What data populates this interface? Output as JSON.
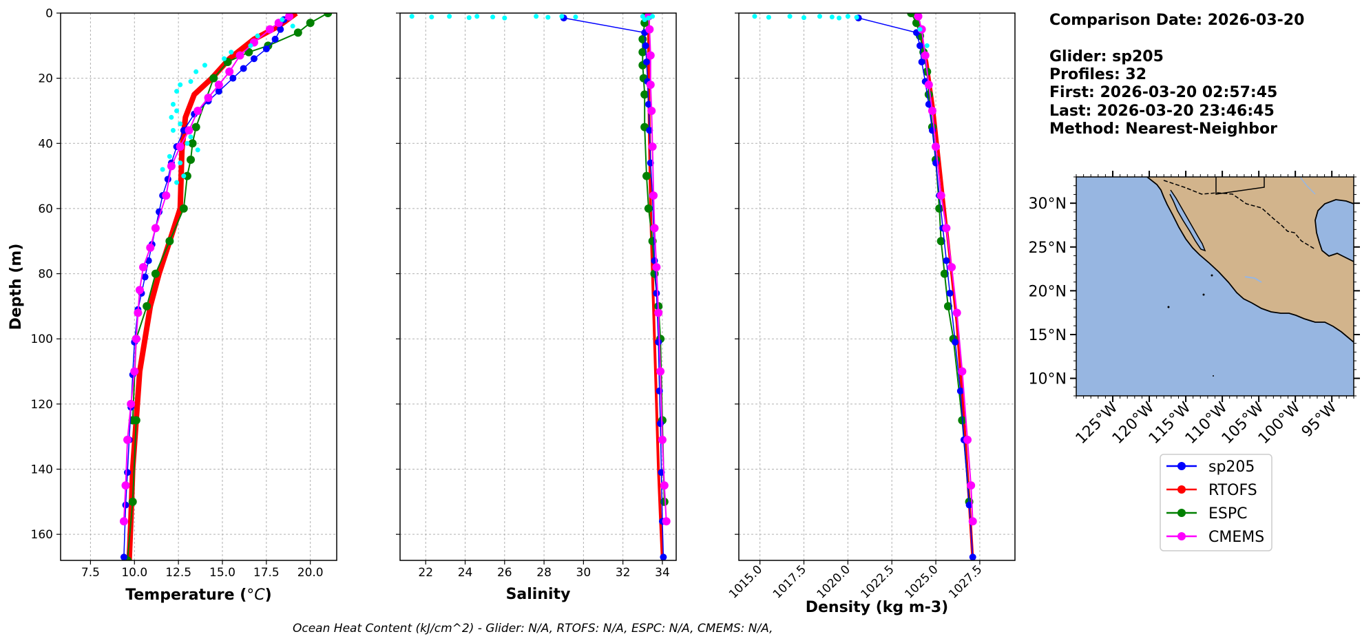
{
  "info": {
    "comparison_date": "Comparison Date: 2026-03-20",
    "glider": "Glider: sp205",
    "profiles": "Profiles: 32",
    "first": "First: 2026-03-20 02:57:45",
    "last": "Last: 2026-03-20 23:46:45",
    "method": "Method: Nearest-Neighbor"
  },
  "footer": "Ocean Heat Content (kJ/cm^2) - Glider: N/A,  RTOFS: N/A,  ESPC: N/A,  CMEMS: N/A,",
  "colors": {
    "sp205": "#0000ff",
    "RTOFS": "#ff0000",
    "ESPC": "#008000",
    "CMEMS": "#ff00ff",
    "raw": "#00ffff",
    "ocean": "#97b6e1",
    "land": "#d2b48c",
    "grid": "#b0b0b0"
  },
  "legend": [
    "sp205",
    "RTOFS",
    "ESPC",
    "CMEMS"
  ],
  "chart_data": [
    {
      "type": "line",
      "id": "temperature",
      "xlabel": "Temperature ($^{o}C$)",
      "ylabel": "Depth (m)",
      "xlim": [
        5.8,
        21.5
      ],
      "ylim": [
        168,
        0
      ],
      "xticks": [
        7.5,
        10.0,
        12.5,
        15.0,
        17.5,
        20.0
      ],
      "xtick_labels": [
        "7.5",
        "10.0",
        "12.5",
        "15.0",
        "17.5",
        "20.0"
      ],
      "yticks": [
        0,
        20,
        40,
        60,
        80,
        100,
        120,
        140,
        160
      ],
      "grid": true,
      "series": [
        {
          "name": "RTOFS",
          "width": 8,
          "marker": 0,
          "x": [
            19.2,
            18.2,
            16.8,
            15.4,
            14.4,
            13.4,
            12.9,
            12.7,
            12.6,
            12.0,
            11.4,
            10.9,
            10.6,
            10.3,
            10.1,
            9.9,
            9.8,
            9.7
          ],
          "y": [
            0,
            4,
            8,
            14,
            20,
            25,
            32,
            42,
            60,
            70,
            80,
            90,
            100,
            110,
            125,
            140,
            155,
            168
          ]
        },
        {
          "name": "ESPC",
          "width": 2,
          "marker": 6,
          "x": [
            21.0,
            20.0,
            19.3,
            17.6,
            16.5,
            15.3,
            14.5,
            13.5,
            13.3,
            13.2,
            13.0,
            12.8,
            12.0,
            11.2,
            10.7,
            10.1,
            9.9
          ],
          "y": [
            0,
            3,
            6,
            10,
            12,
            15,
            20,
            35,
            40,
            45,
            50,
            60,
            70,
            80,
            90,
            100,
            125
          ]
        },
        {
          "name": "ESPC-tail",
          "width": 2,
          "marker": 6,
          "color_key": "ESPC",
          "x": [
            10.1,
            9.9,
            9.6
          ],
          "y": [
            125,
            150,
            168
          ]
        },
        {
          "name": "sp205",
          "width": 1.5,
          "marker": 5,
          "x": [
            18.5,
            18.3,
            18.0,
            17.5,
            16.8,
            16.2,
            15.6,
            14.8,
            14.2,
            13.4,
            12.8,
            12.4,
            12.1,
            11.9,
            11.6,
            11.4,
            11.2,
            11.0,
            10.8,
            10.6,
            10.4,
            10.2,
            10.0,
            9.9,
            9.8,
            9.7,
            9.6,
            9.5,
            9.4
          ],
          "y": [
            2,
            5,
            8,
            11,
            14,
            17,
            20,
            24,
            27,
            31,
            36,
            41,
            46,
            51,
            56,
            61,
            66,
            71,
            76,
            81,
            86,
            91,
            101,
            111,
            121,
            131,
            141,
            151,
            167
          ]
        },
        {
          "name": "CMEMS",
          "width": 2,
          "marker": 6,
          "x": [
            18.8,
            18.2,
            17.7,
            16.8,
            16.0,
            15.4,
            14.8,
            14.2,
            13.6,
            13.1,
            12.6,
            12.1,
            11.8,
            11.2,
            10.9,
            10.5,
            10.3,
            10.2,
            10.1,
            10.0,
            9.8,
            9.6,
            9.5,
            9.4
          ],
          "y": [
            1,
            3,
            5,
            9,
            13,
            18,
            22,
            26,
            30,
            36,
            41,
            47,
            56,
            66,
            72,
            78,
            85,
            92,
            100,
            110,
            120,
            131,
            145,
            156
          ]
        }
      ],
      "raw_points": {
        "name": "sp205-raw",
        "x": [
          18.4,
          19.0,
          17.0,
          16.6,
          15.5,
          15.1,
          14.0,
          13.5,
          13.2,
          12.6,
          12.4,
          12.2,
          12.4,
          12.1,
          12.6,
          12.2,
          13.2,
          13.0,
          13.6,
          12.0,
          12.6,
          11.6,
          12.8,
          12.4
        ],
        "y": [
          2,
          4,
          7,
          10,
          12,
          14,
          16,
          18,
          21,
          22,
          24,
          28,
          30,
          32,
          34,
          36,
          38,
          40,
          42,
          44,
          46,
          48,
          50,
          52
        ]
      }
    },
    {
      "type": "line",
      "id": "salinity",
      "xlabel": "Salinity",
      "ylabel": "",
      "xlim": [
        20.7,
        34.7
      ],
      "ylim": [
        168,
        0
      ],
      "xticks": [
        22,
        24,
        26,
        28,
        30,
        32,
        34
      ],
      "xtick_labels": [
        "22",
        "24",
        "26",
        "28",
        "30",
        "32",
        "34"
      ],
      "yticks": [
        0,
        20,
        40,
        60,
        80,
        100,
        120,
        140,
        160
      ],
      "grid": true,
      "series": [
        {
          "name": "RTOFS",
          "width": 4,
          "marker": 0,
          "x": [
            33.3,
            33.3,
            33.3,
            33.35,
            33.4,
            33.5,
            33.6,
            33.7,
            33.8,
            33.9,
            34.0
          ],
          "y": [
            0,
            10,
            20,
            40,
            60,
            80,
            100,
            120,
            140,
            155,
            168
          ]
        },
        {
          "name": "ESPC",
          "width": 2,
          "marker": 6,
          "x": [
            33.2,
            33.1,
            33.0,
            33.0,
            33.0,
            33.05,
            33.1,
            33.1,
            33.2,
            33.3,
            33.5,
            33.6,
            33.8,
            33.9,
            34.0,
            34.1
          ],
          "y": [
            0,
            3,
            8,
            12,
            16,
            20,
            25,
            35,
            50,
            60,
            70,
            80,
            90,
            100,
            125,
            150
          ]
        },
        {
          "name": "sp205",
          "width": 1.5,
          "marker": 5,
          "x": [
            29.0,
            33.1,
            33.15,
            33.2,
            33.25,
            33.3,
            33.35,
            33.4,
            33.5,
            33.55,
            33.6,
            33.7,
            33.8,
            33.85,
            33.9,
            33.95,
            34.0,
            34.05
          ],
          "y": [
            1.5,
            6,
            10,
            15,
            21,
            28,
            36,
            46,
            56,
            66,
            76,
            86,
            101,
            116,
            126,
            141,
            156,
            167
          ]
        },
        {
          "name": "CMEMS",
          "width": 2,
          "marker": 6,
          "x": [
            33.3,
            33.35,
            33.4,
            33.4,
            33.45,
            33.5,
            33.55,
            33.6,
            33.7,
            33.8,
            33.9,
            34.0,
            34.1,
            34.2
          ],
          "y": [
            1,
            5,
            13,
            22,
            30,
            41,
            56,
            66,
            78,
            92,
            110,
            131,
            145,
            156
          ]
        }
      ],
      "raw_points": {
        "name": "sp205-raw",
        "x": [
          21.3,
          22.3,
          23.2,
          24.2,
          24.6,
          25.4,
          26.0,
          27.6,
          28.2,
          28.9,
          29.6,
          33.0,
          33.3,
          33.5,
          33.1
        ],
        "y": [
          1,
          1.2,
          1,
          1.4,
          1,
          1.2,
          1.5,
          1,
          1.3,
          1,
          1.2,
          1,
          1.5,
          1,
          2
        ]
      }
    },
    {
      "type": "line",
      "id": "density",
      "xlabel": "Density (kg m-3)",
      "ylabel": "",
      "xlim": [
        1013.8,
        1029.5
      ],
      "ylim": [
        168,
        0
      ],
      "xticks": [
        1015.0,
        1017.5,
        1020.0,
        1022.5,
        1025.0,
        1027.5
      ],
      "xtick_labels": [
        "1015.0",
        "1017.5",
        "1020.0",
        "1022.5",
        "1025.0",
        "1027.5"
      ],
      "yticks": [
        0,
        20,
        40,
        60,
        80,
        100,
        120,
        140,
        160
      ],
      "grid": true,
      "series": [
        {
          "name": "RTOFS",
          "width": 4,
          "marker": 0,
          "x": [
            1023.9,
            1024.2,
            1024.5,
            1024.9,
            1025.2,
            1025.5,
            1025.8,
            1026.2,
            1026.6,
            1026.9,
            1027.1
          ],
          "y": [
            0,
            8,
            15,
            30,
            45,
            60,
            75,
            95,
            125,
            150,
            168
          ]
        },
        {
          "name": "ESPC",
          "width": 2,
          "marker": 6,
          "x": [
            1023.6,
            1023.9,
            1024.1,
            1024.3,
            1024.5,
            1024.6,
            1024.8,
            1025.0,
            1025.2,
            1025.3,
            1025.5,
            1025.7,
            1026.0,
            1026.5,
            1026.9
          ],
          "y": [
            0,
            3,
            7,
            12,
            18,
            25,
            35,
            45,
            60,
            70,
            80,
            90,
            100,
            125,
            150
          ]
        },
        {
          "name": "sp205",
          "width": 1.5,
          "marker": 5,
          "x": [
            1020.6,
            1023.9,
            1024.1,
            1024.2,
            1024.4,
            1024.6,
            1024.8,
            1025.0,
            1025.2,
            1025.4,
            1025.6,
            1025.8,
            1026.1,
            1026.4,
            1026.6,
            1026.9,
            1027.1
          ],
          "y": [
            1.5,
            6,
            10,
            15,
            21,
            28,
            36,
            46,
            56,
            66,
            76,
            86,
            101,
            116,
            131,
            151,
            167
          ]
        },
        {
          "name": "CMEMS",
          "width": 2,
          "marker": 6,
          "x": [
            1024.0,
            1024.2,
            1024.4,
            1024.6,
            1024.8,
            1025.0,
            1025.3,
            1025.6,
            1025.9,
            1026.2,
            1026.5,
            1026.8,
            1027.0,
            1027.1
          ],
          "y": [
            1,
            5,
            13,
            22,
            30,
            41,
            56,
            66,
            78,
            92,
            110,
            131,
            145,
            156
          ]
        }
      ],
      "raw_points": {
        "name": "sp205-raw",
        "x": [
          1014.7,
          1015.5,
          1016.7,
          1017.5,
          1018.4,
          1019.1,
          1019.5,
          1020.0,
          1020.5,
          1024.1,
          1024.5
        ],
        "y": [
          1,
          1.3,
          1,
          1.4,
          1,
          1.2,
          1.5,
          1,
          1.3,
          5,
          10
        ]
      }
    },
    {
      "type": "map",
      "id": "location-map",
      "lon_range": [
        -130,
        -92
      ],
      "lat_range": [
        8,
        33
      ],
      "xticks": [
        -125,
        -120,
        -115,
        -110,
        -105,
        -100,
        -95
      ],
      "xtick_labels": [
        "125°W",
        "120°W",
        "115°W",
        "110°W",
        "105°W",
        "100°W",
        "95°W"
      ],
      "yticks": [
        10,
        15,
        20,
        25,
        30
      ],
      "ytick_labels": [
        "10°N",
        "15°N",
        "20°N",
        "25°N",
        "30°N"
      ]
    }
  ]
}
